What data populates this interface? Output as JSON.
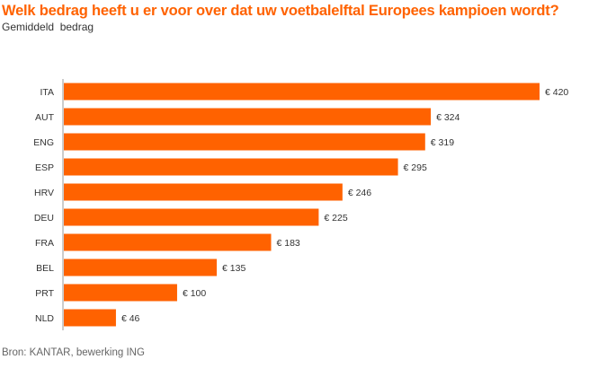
{
  "chart_data": {
    "type": "bar",
    "orientation": "horizontal",
    "title": "Welk bedrag heeft u er voor over dat uw voetbalelftal Europees kampioen wordt?",
    "subtitle": "Gemiddeld  bedrag",
    "categories": [
      "ITA",
      "AUT",
      "ENG",
      "ESP",
      "HRV",
      "DEU",
      "FRA",
      "BEL",
      "PRT",
      "NLD"
    ],
    "values": [
      420,
      324,
      319,
      295,
      246,
      225,
      183,
      135,
      100,
      46
    ],
    "value_labels": [
      "€ 420",
      "€ 324",
      "€ 319",
      "€ 295",
      "€ 246",
      "€ 225",
      "€ 183",
      "€ 135",
      "€ 100",
      "€ 46"
    ],
    "xlim": [
      0,
      420
    ],
    "grid": false,
    "bar_color": "#ff6200",
    "source": "Bron: KANTAR, bewerking ING"
  }
}
